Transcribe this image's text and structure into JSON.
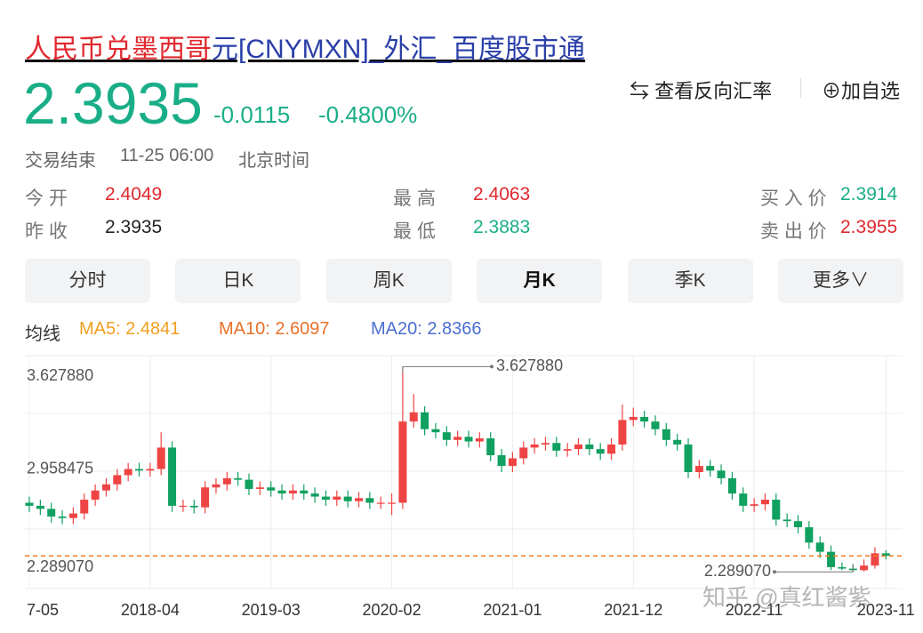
{
  "header": {
    "title_highlight": "人民币兑墨西哥",
    "title_rest": "元[CNYMXN]_外汇_百度股市通",
    "price": "2.3935",
    "change": "-0.0115",
    "change_pct": "-0.4800%",
    "reverse_rate": "查看反向汇率",
    "add_watchlist": "加自选",
    "status": "交易结束",
    "time": "11-25 06:00",
    "timezone": "北京时间"
  },
  "quote": {
    "rows": [
      [
        {
          "label": "今 开",
          "value": "2.4049"
        },
        {
          "label": "最 高",
          "value": "2.4063"
        },
        {
          "label": "买 入 价",
          "value": "2.3914"
        }
      ],
      [
        {
          "label": "昨 收",
          "value": "2.3935"
        },
        {
          "label": "最 低",
          "value": "2.3883"
        },
        {
          "label": "卖 出 价",
          "value": "2.3955"
        }
      ]
    ]
  },
  "tabs": [
    "分时",
    "日K",
    "周K",
    "月K",
    "季K",
    "更多"
  ],
  "ma_legend": {
    "label": "均线",
    "items": [
      "MA5: 2.4841",
      "MA10: 2.6097",
      "MA20: 2.8366"
    ]
  },
  "chart_data": {
    "type": "candlestick",
    "up_color": "#ef4444",
    "down_color": "#10a060",
    "categories": [
      "7-05",
      null,
      null,
      null,
      null,
      null,
      null,
      null,
      null,
      null,
      null,
      "2018-04",
      null,
      null,
      null,
      null,
      null,
      null,
      null,
      null,
      null,
      null,
      "2019-03",
      null,
      null,
      null,
      null,
      null,
      null,
      null,
      null,
      null,
      null,
      "2020-02",
      null,
      null,
      null,
      null,
      null,
      null,
      null,
      null,
      null,
      null,
      "2021-01",
      null,
      null,
      null,
      null,
      null,
      null,
      null,
      null,
      null,
      null,
      "2021-12",
      null,
      null,
      null,
      null,
      null,
      null,
      null,
      null,
      null,
      null,
      "2022-11",
      null,
      null,
      null,
      null,
      null,
      null,
      null,
      null,
      null,
      null,
      null,
      "2023-11"
    ],
    "open": [
      2.74,
      2.72,
      2.7,
      2.65,
      2.64,
      2.67,
      2.76,
      2.82,
      2.86,
      2.92,
      2.96,
      2.95,
      2.96,
      3.1,
      2.72,
      2.72,
      2.71,
      2.84,
      2.86,
      2.9,
      2.89,
      2.83,
      2.84,
      2.82,
      2.8,
      2.82,
      2.8,
      2.78,
      2.76,
      2.78,
      2.75,
      2.77,
      2.74,
      2.74,
      2.74,
      3.27,
      3.33,
      3.22,
      3.2,
      3.15,
      3.17,
      3.14,
      3.16,
      3.05,
      2.98,
      3.03,
      3.1,
      3.12,
      3.13,
      3.08,
      3.09,
      3.12,
      3.09,
      3.06,
      3.12,
      3.28,
      3.3,
      3.27,
      3.22,
      3.15,
      3.12,
      2.94,
      2.98,
      2.95,
      2.9,
      2.8,
      2.72,
      2.73,
      2.76,
      2.63,
      2.62,
      2.58,
      2.48,
      2.42,
      2.32,
      2.31,
      2.3,
      2.33,
      2.41
    ],
    "high": [
      2.78,
      2.76,
      2.74,
      2.69,
      2.71,
      2.8,
      2.86,
      2.9,
      2.96,
      3.0,
      3.0,
      3.0,
      3.2,
      3.14,
      2.76,
      2.76,
      2.88,
      2.9,
      2.94,
      2.94,
      2.93,
      2.88,
      2.88,
      2.86,
      2.86,
      2.86,
      2.84,
      2.82,
      2.82,
      2.82,
      2.81,
      2.81,
      2.78,
      2.8,
      3.62788,
      3.45,
      3.37,
      3.26,
      3.24,
      3.21,
      3.21,
      3.2,
      3.2,
      3.09,
      3.07,
      3.14,
      3.16,
      3.17,
      3.17,
      3.13,
      3.16,
      3.16,
      3.13,
      3.16,
      3.38,
      3.36,
      3.34,
      3.31,
      3.26,
      3.19,
      3.16,
      3.02,
      3.02,
      2.99,
      2.94,
      2.84,
      2.77,
      2.8,
      2.8,
      2.67,
      2.66,
      2.62,
      2.52,
      2.46,
      2.35,
      2.34,
      2.37,
      2.45,
      2.43
    ],
    "low": [
      2.68,
      2.66,
      2.61,
      2.6,
      2.6,
      2.63,
      2.72,
      2.78,
      2.82,
      2.88,
      2.91,
      2.91,
      2.92,
      2.68,
      2.68,
      2.67,
      2.67,
      2.8,
      2.82,
      2.85,
      2.79,
      2.79,
      2.78,
      2.76,
      2.76,
      2.76,
      2.74,
      2.72,
      2.72,
      2.71,
      2.71,
      2.7,
      2.7,
      2.66,
      2.7,
      3.23,
      3.18,
      3.16,
      3.11,
      3.11,
      3.1,
      3.1,
      3.01,
      2.94,
      2.94,
      2.99,
      3.06,
      3.08,
      3.04,
      3.04,
      3.05,
      3.05,
      3.02,
      3.02,
      3.08,
      3.24,
      3.23,
      3.18,
      3.11,
      3.08,
      2.9,
      2.9,
      2.91,
      2.86,
      2.76,
      2.68,
      2.68,
      2.69,
      2.59,
      2.58,
      2.54,
      2.44,
      2.38,
      2.3,
      2.3,
      2.28907,
      2.29,
      2.31,
      2.37
    ],
    "close": [
      2.72,
      2.7,
      2.65,
      2.64,
      2.67,
      2.76,
      2.82,
      2.86,
      2.92,
      2.96,
      2.95,
      2.96,
      3.1,
      2.72,
      2.72,
      2.71,
      2.84,
      2.86,
      2.9,
      2.89,
      2.83,
      2.84,
      2.82,
      2.8,
      2.82,
      2.8,
      2.78,
      2.76,
      2.78,
      2.75,
      2.77,
      2.74,
      2.74,
      2.74,
      3.27,
      3.33,
      3.22,
      3.2,
      3.15,
      3.17,
      3.14,
      3.16,
      3.05,
      2.98,
      3.03,
      3.1,
      3.12,
      3.13,
      3.08,
      3.09,
      3.12,
      3.09,
      3.06,
      3.12,
      3.28,
      3.3,
      3.27,
      3.22,
      3.15,
      3.12,
      2.94,
      2.98,
      2.95,
      2.9,
      2.8,
      2.72,
      2.73,
      2.76,
      2.63,
      2.62,
      2.58,
      2.48,
      2.42,
      2.32,
      2.31,
      2.3,
      2.33,
      2.41,
      2.3935
    ],
    "ylim": [
      2.18,
      3.7
    ],
    "yticks": [
      {
        "value": 3.62788,
        "label": "3.627880"
      },
      {
        "value": 2.958475,
        "label": "2.958475"
      },
      {
        "value": 2.28907,
        "label": "2.289070"
      }
    ],
    "annotations": [
      {
        "value": 3.62788,
        "label": "3.627880"
      },
      {
        "value": 2.28907,
        "label": "2.289070"
      }
    ],
    "reference_color": "#f07a20"
  },
  "watermark": "知乎 @真红酱紫"
}
